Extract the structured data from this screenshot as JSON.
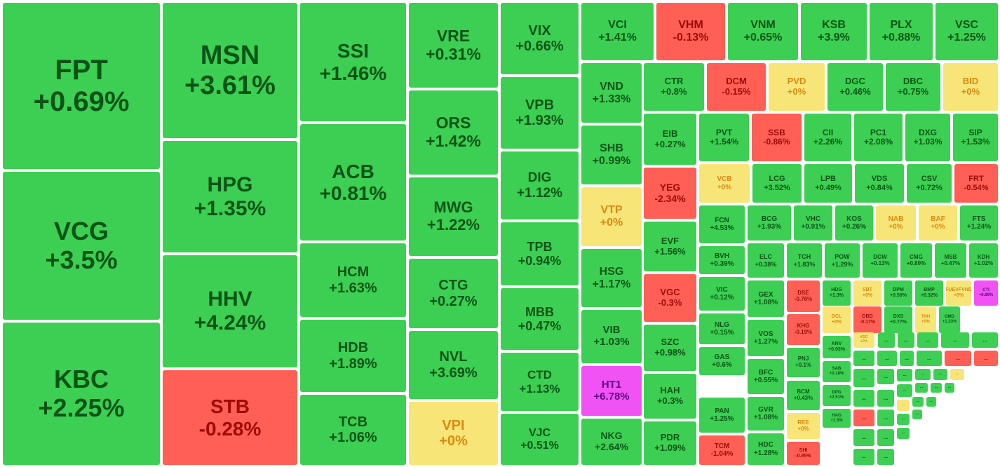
{
  "colors": {
    "up": "#3ccf53",
    "down": "#ff5f54",
    "flat": "#f8e577",
    "ceiling": "#f052f3",
    "up_text": "#0b5416",
    "down_text": "#9e0b08",
    "flat_text": "#d98a12",
    "ceiling_text": "#5d0a7f"
  },
  "tiles": [
    {
      "symbol": "FPT",
      "change": "+0.69%",
      "status": "up"
    },
    {
      "symbol": "VCG",
      "change": "+3.5%",
      "status": "up"
    },
    {
      "symbol": "KBC",
      "change": "+2.25%",
      "status": "up"
    },
    {
      "symbol": "MSN",
      "change": "+3.61%",
      "status": "up"
    },
    {
      "symbol": "HPG",
      "change": "+1.35%",
      "status": "up"
    },
    {
      "symbol": "HHV",
      "change": "+4.24%",
      "status": "up"
    },
    {
      "symbol": "STB",
      "change": "-0.28%",
      "status": "down"
    },
    {
      "symbol": "SSI",
      "change": "+1.46%",
      "status": "up"
    },
    {
      "symbol": "ACB",
      "change": "+0.81%",
      "status": "up"
    },
    {
      "symbol": "HCM",
      "change": "+1.63%",
      "status": "up"
    },
    {
      "symbol": "HDB",
      "change": "+1.89%",
      "status": "up"
    },
    {
      "symbol": "TCB",
      "change": "+1.06%",
      "status": "up"
    },
    {
      "symbol": "VRE",
      "change": "+0.31%",
      "status": "up"
    },
    {
      "symbol": "ORS",
      "change": "+1.42%",
      "status": "up"
    },
    {
      "symbol": "MWG",
      "change": "+1.22%",
      "status": "up"
    },
    {
      "symbol": "CTG",
      "change": "+0.27%",
      "status": "up"
    },
    {
      "symbol": "NVL",
      "change": "+3.69%",
      "status": "up"
    },
    {
      "symbol": "VPI",
      "change": "+0%",
      "status": "flat"
    },
    {
      "symbol": "VIX",
      "change": "+0.66%",
      "status": "up"
    },
    {
      "symbol": "VPB",
      "change": "+1.93%",
      "status": "up"
    },
    {
      "symbol": "DIG",
      "change": "+1.12%",
      "status": "up"
    },
    {
      "symbol": "TPB",
      "change": "+0.94%",
      "status": "up"
    },
    {
      "symbol": "MBB",
      "change": "+0.47%",
      "status": "up"
    },
    {
      "symbol": "CTD",
      "change": "+1.13%",
      "status": "up"
    },
    {
      "symbol": "VJC",
      "change": "+0.51%",
      "status": "up"
    },
    {
      "symbol": "VCI",
      "change": "+1.41%",
      "status": "up"
    },
    {
      "symbol": "VHM",
      "change": "-0.13%",
      "status": "down"
    },
    {
      "symbol": "VNM",
      "change": "+0.65%",
      "status": "up"
    },
    {
      "symbol": "KSB",
      "change": "+3.9%",
      "status": "up"
    },
    {
      "symbol": "PLX",
      "change": "+0.88%",
      "status": "up"
    },
    {
      "symbol": "VSC",
      "change": "+1.25%",
      "status": "up"
    },
    {
      "symbol": "VND",
      "change": "+1.33%",
      "status": "up"
    },
    {
      "symbol": "SHB",
      "change": "+0.99%",
      "status": "up"
    },
    {
      "symbol": "VTP",
      "change": "+0%",
      "status": "flat"
    },
    {
      "symbol": "HSG",
      "change": "+1.17%",
      "status": "up"
    },
    {
      "symbol": "VIB",
      "change": "+1.03%",
      "status": "up"
    },
    {
      "symbol": "HT1",
      "change": "+6.78%",
      "status": "ceiling"
    },
    {
      "symbol": "NKG",
      "change": "+2.64%",
      "status": "up"
    },
    {
      "symbol": "CTR",
      "change": "+0.8%",
      "status": "up"
    },
    {
      "symbol": "DCM",
      "change": "-0.15%",
      "status": "down"
    },
    {
      "symbol": "PVD",
      "change": "+0%",
      "status": "flat"
    },
    {
      "symbol": "DGC",
      "change": "+0.46%",
      "status": "up"
    },
    {
      "symbol": "DBC",
      "change": "+0.75%",
      "status": "up"
    },
    {
      "symbol": "BID",
      "change": "+0%",
      "status": "flat"
    },
    {
      "symbol": "EIB",
      "change": "+0.27%",
      "status": "up"
    },
    {
      "symbol": "PVT",
      "change": "+1.54%",
      "status": "up"
    },
    {
      "symbol": "SSB",
      "change": "-0.86%",
      "status": "down"
    },
    {
      "symbol": "CII",
      "change": "+2.26%",
      "status": "up"
    },
    {
      "symbol": "PC1",
      "change": "+2.08%",
      "status": "up"
    },
    {
      "symbol": "DXG",
      "change": "+1.03%",
      "status": "up"
    },
    {
      "symbol": "SIP",
      "change": "+1.53%",
      "status": "up"
    },
    {
      "symbol": "YEG",
      "change": "-2.34%",
      "status": "down"
    },
    {
      "symbol": "VCB",
      "change": "+0%",
      "status": "flat"
    },
    {
      "symbol": "LCG",
      "change": "+3.52%",
      "status": "up"
    },
    {
      "symbol": "LPB",
      "change": "+0.49%",
      "status": "up"
    },
    {
      "symbol": "VDS",
      "change": "+0.84%",
      "status": "up"
    },
    {
      "symbol": "CSV",
      "change": "+0.72%",
      "status": "up"
    },
    {
      "symbol": "FRT",
      "change": "-0.54%",
      "status": "down"
    },
    {
      "symbol": "EVF",
      "change": "+1.56%",
      "status": "up"
    },
    {
      "symbol": "FCN",
      "change": "+4.53%",
      "status": "up"
    },
    {
      "symbol": "BCG",
      "change": "+1.93%",
      "status": "up"
    },
    {
      "symbol": "VHC",
      "change": "+0.91%",
      "status": "up"
    },
    {
      "symbol": "KOS",
      "change": "+0.26%",
      "status": "up"
    },
    {
      "symbol": "NAB",
      "change": "+0%",
      "status": "flat"
    },
    {
      "symbol": "BAF",
      "change": "+0%",
      "status": "flat"
    },
    {
      "symbol": "FTS",
      "change": "+1.24%",
      "status": "up"
    },
    {
      "symbol": "VGC",
      "change": "-0.3%",
      "status": "down"
    },
    {
      "symbol": "BVH",
      "change": "+0.39%",
      "status": "up"
    },
    {
      "symbol": "ELC",
      "change": "+0.38%",
      "status": "up"
    },
    {
      "symbol": "TCH",
      "change": "+1.83%",
      "status": "up"
    },
    {
      "symbol": "POW",
      "change": "+1.29%",
      "status": "up"
    },
    {
      "symbol": "DGW",
      "change": "+0.13%",
      "status": "up"
    },
    {
      "symbol": "CMG",
      "change": "+0.89%",
      "status": "up"
    },
    {
      "symbol": "MSB",
      "change": "+0.47%",
      "status": "up"
    },
    {
      "symbol": "KDH",
      "change": "+1.02%",
      "status": "up"
    },
    {
      "symbol": "SZC",
      "change": "+0.98%",
      "status": "up"
    },
    {
      "symbol": "VIC",
      "change": "+0.12%",
      "status": "up"
    },
    {
      "symbol": "GEX",
      "change": "+1.08%",
      "status": "up"
    },
    {
      "symbol": "DSE",
      "change": "-0.76%",
      "status": "down"
    },
    {
      "symbol": "HDG",
      "change": "+1.3%",
      "status": "up"
    },
    {
      "symbol": "SBT",
      "change": "+0%",
      "status": "flat"
    },
    {
      "symbol": "DPM",
      "change": "+0.59%",
      "status": "up"
    },
    {
      "symbol": "BMP",
      "change": "+0.32%",
      "status": "up"
    },
    {
      "symbol": "FUEVFVND",
      "change": "+0%",
      "status": "flat"
    },
    {
      "symbol": "CTI",
      "change": "+6.86%",
      "status": "ceiling"
    },
    {
      "symbol": "HAH",
      "change": "+0.3%",
      "status": "up"
    },
    {
      "symbol": "NLG",
      "change": "+0.15%",
      "status": "up"
    },
    {
      "symbol": "VOS",
      "change": "+1.27%",
      "status": "up"
    },
    {
      "symbol": "KHG",
      "change": "-0.19%",
      "status": "down"
    },
    {
      "symbol": "DCL",
      "change": "+0%",
      "status": "flat"
    },
    {
      "symbol": "DBD",
      "change": "-0.17%",
      "status": "down"
    },
    {
      "symbol": "DXS",
      "change": "+0.77%",
      "status": "up"
    },
    {
      "symbol": "TNH",
      "change": "+0%",
      "status": "flat"
    },
    {
      "symbol": "GMD",
      "change": "+1.33%",
      "status": "up"
    },
    {
      "symbol": "PDR",
      "change": "+1.09%",
      "status": "up"
    },
    {
      "symbol": "GAS",
      "change": "+0.6%",
      "status": "up"
    },
    {
      "symbol": "BFC",
      "change": "+0.55%",
      "status": "up"
    },
    {
      "symbol": "PNJ",
      "change": "+0.1%",
      "status": "up"
    },
    {
      "symbol": "ANV",
      "change": "+0.93%",
      "status": "up"
    },
    {
      "symbol": "KDC",
      "change": "+0%",
      "status": "flat"
    },
    {
      "symbol": "PAN",
      "change": "+1.25%",
      "status": "up"
    },
    {
      "symbol": "GVR",
      "change": "+1.08%",
      "status": "up"
    },
    {
      "symbol": "BCM",
      "change": "+0.43%",
      "status": "up"
    },
    {
      "symbol": "SAB",
      "change": "+0.18%",
      "status": "up"
    },
    {
      "symbol": "DPG",
      "change": "+2.51%",
      "status": "up"
    },
    {
      "symbol": "REE",
      "change": "+0%",
      "status": "flat"
    },
    {
      "symbol": "HAG",
      "change": "+1.3%",
      "status": "up"
    },
    {
      "symbol": "TCM",
      "change": "-1.04%",
      "status": "down"
    },
    {
      "symbol": "HDC",
      "change": "+1.28%",
      "status": "up"
    },
    {
      "symbol": "SHI",
      "change": "-0.95%",
      "status": "down"
    }
  ],
  "more_tiles": [
    {
      "label": "...",
      "status": "up"
    },
    {
      "label": "...",
      "status": "up"
    },
    {
      "label": "...",
      "status": "up"
    },
    {
      "label": "...",
      "status": "up"
    },
    {
      "label": "...",
      "status": "up"
    },
    {
      "label": "...",
      "status": "up"
    },
    {
      "label": "...",
      "status": "up"
    },
    {
      "label": "...",
      "status": "up"
    },
    {
      "label": "...",
      "status": "up"
    },
    {
      "label": "...",
      "status": "down"
    },
    {
      "label": "...",
      "status": "down"
    },
    {
      "label": "...",
      "status": "up"
    },
    {
      "label": "...",
      "status": "up"
    },
    {
      "label": "...",
      "status": "up"
    },
    {
      "label": "...",
      "status": "up"
    },
    {
      "label": "...",
      "status": "up"
    },
    {
      "label": "...",
      "status": "flat"
    },
    {
      "label": "...",
      "status": "up"
    },
    {
      "label": "...",
      "status": "up"
    },
    {
      "label": "...",
      "status": "up"
    },
    {
      "label": "...",
      "status": "up"
    },
    {
      "label": "...",
      "status": "up"
    },
    {
      "label": "...",
      "status": "up"
    },
    {
      "label": "...",
      "status": "down"
    },
    {
      "label": "...",
      "status": "up"
    },
    {
      "label": "...",
      "status": "flat"
    },
    {
      "label": "...",
      "status": "up"
    },
    {
      "label": "...",
      "status": "up"
    },
    {
      "label": "...",
      "status": "up"
    },
    {
      "label": "...",
      "status": "up"
    },
    {
      "label": "...",
      "status": "up"
    },
    {
      "label": "...",
      "status": "up"
    },
    {
      "label": "...",
      "status": "up"
    },
    {
      "label": "...",
      "status": "up"
    },
    {
      "label": "...",
      "status": "up"
    }
  ]
}
